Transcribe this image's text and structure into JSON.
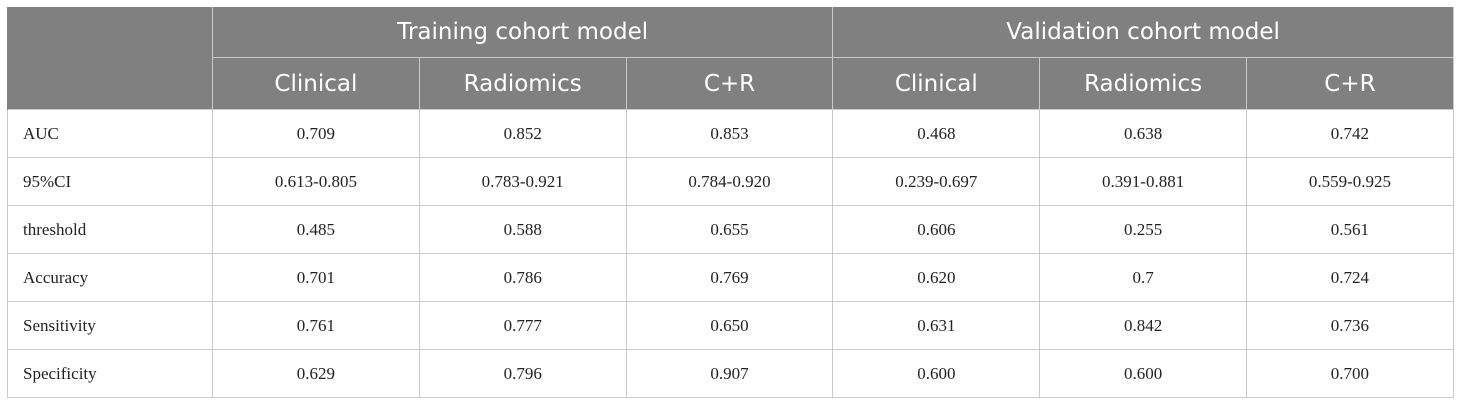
{
  "table": {
    "groups": [
      "Training cohort model",
      "Validation cohort model"
    ],
    "subheaders": [
      "Clinical",
      "Radiomics",
      "C+R",
      "Clinical",
      "Radiomics",
      "C+R"
    ],
    "rows": [
      {
        "label": "AUC",
        "values": [
          "0.709",
          "0.852",
          "0.853",
          "0.468",
          "0.638",
          "0.742"
        ]
      },
      {
        "label": "95%CI",
        "values": [
          "0.613-0.805",
          "0.783-0.921",
          "0.784-0.920",
          "0.239-0.697",
          "0.391-0.881",
          "0.559-0.925"
        ]
      },
      {
        "label": "threshold",
        "values": [
          "0.485",
          "0.588",
          "0.655",
          "0.606",
          "0.255",
          "0.561"
        ]
      },
      {
        "label": "Accuracy",
        "values": [
          "0.701",
          "0.786",
          "0.769",
          "0.620",
          "0.7",
          "0.724"
        ]
      },
      {
        "label": "Sensitivity",
        "values": [
          "0.761",
          "0.777",
          "0.650",
          "0.631",
          "0.842",
          "0.736"
        ]
      },
      {
        "label": "Specificity",
        "values": [
          "0.629",
          "0.796",
          "0.907",
          "0.600",
          "0.600",
          "0.700"
        ]
      }
    ],
    "colors": {
      "header_bg": "#808080",
      "header_text": "#ffffff",
      "grid": "#c9c9c9",
      "body_text": "#222222"
    }
  }
}
